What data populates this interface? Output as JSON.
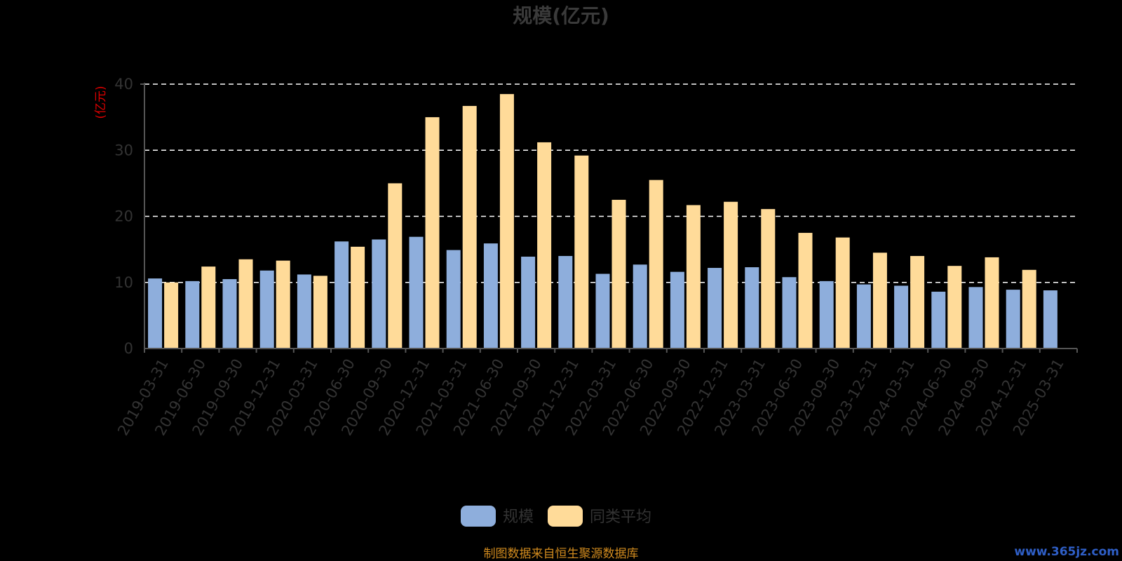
{
  "chart_data": {
    "type": "bar",
    "title": "规模(亿元)",
    "ylabel": "(亿元)",
    "ylim": [
      0,
      40
    ],
    "yticks": [
      "0",
      "10",
      "20",
      "30",
      "40"
    ],
    "grid": "dashed horizontal",
    "legend_position": "bottom",
    "categories": [
      "2019-03-31",
      "2019-06-30",
      "2019-09-30",
      "2019-12-31",
      "2020-03-31",
      "2020-06-30",
      "2020-09-30",
      "2020-12-31",
      "2021-03-31",
      "2021-06-30",
      "2021-09-30",
      "2021-12-31",
      "2022-03-31",
      "2022-06-30",
      "2022-09-30",
      "2022-12-31",
      "2023-03-31",
      "2023-06-30",
      "2023-09-30",
      "2023-12-31",
      "2024-03-31",
      "2024-06-30",
      "2024-09-30",
      "2024-12-31",
      "2025-03-31"
    ],
    "series": [
      {
        "name": "规模",
        "color": "#8eaedc",
        "values": [
          10.6,
          10.2,
          10.5,
          11.8,
          11.2,
          16.2,
          16.5,
          16.9,
          14.9,
          15.9,
          13.9,
          14.0,
          11.3,
          12.7,
          11.6,
          12.2,
          12.3,
          10.8,
          10.2,
          9.7,
          9.5,
          8.6,
          9.3,
          8.9,
          8.8
        ]
      },
      {
        "name": "同类平均",
        "color": "#ffdb99",
        "values": [
          10.0,
          12.4,
          13.5,
          13.3,
          11.0,
          15.4,
          25.0,
          35.0,
          36.7,
          38.5,
          31.2,
          29.2,
          22.5,
          25.5,
          21.7,
          22.2,
          21.1,
          17.5,
          16.8,
          14.5,
          14.0,
          12.5,
          13.8,
          11.9,
          null
        ]
      }
    ]
  },
  "footer": {
    "source": "制图数据来自恒生聚源数据库",
    "watermark": "www.365jz.com"
  },
  "colors": {
    "background": "#000000",
    "axis": "#555555",
    "grid": "#ffffff",
    "ylabel": "#e00000",
    "source": "#d08a1e"
  }
}
